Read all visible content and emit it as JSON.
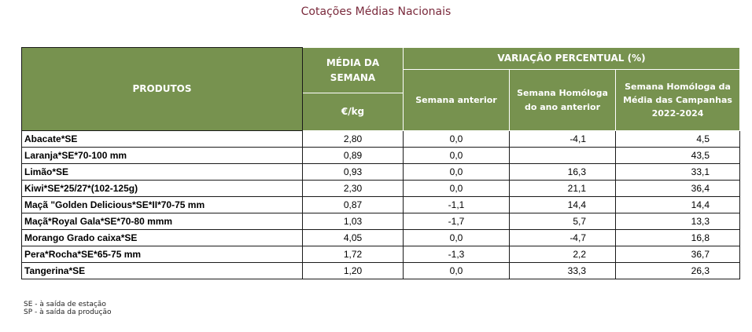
{
  "title": "Cotações Médias Nacionais",
  "table": {
    "headers": {
      "produtos": "PRODUTOS",
      "media_semana": "MÉDIA DA SEMANA",
      "unit": "€/kg",
      "variacao": "VARIAÇÃO PERCENTUAL (%)",
      "semana_anterior": "Semana anterior",
      "semana_homologa": "Semana Homóloga do ano anterior",
      "semana_homologa_media": "Semana Homóloga da Média das Campanhas 2022-2024"
    },
    "rows": [
      {
        "produto": "Abacate*SE",
        "media": "2,80",
        "semana_anterior": "0,0",
        "homologa": "-4,1",
        "homologa_media": "4,5"
      },
      {
        "produto": "Laranja*SE*70-100 mm",
        "media": "0,89",
        "semana_anterior": "0,0",
        "homologa": "",
        "homologa_media": "43,5"
      },
      {
        "produto": "Limão*SE",
        "media": "0,93",
        "semana_anterior": "0,0",
        "homologa": "16,3",
        "homologa_media": "33,1"
      },
      {
        "produto": "Kiwi*SE*25/27*(102-125g)",
        "media": "2,30",
        "semana_anterior": "0,0",
        "homologa": "21,1",
        "homologa_media": "36,4"
      },
      {
        "produto": "Maçã \"Golden Delicious*SE*II*70-75 mm",
        "media": "0,87",
        "semana_anterior": "-1,1",
        "homologa": "14,4",
        "homologa_media": "14,4"
      },
      {
        "produto": "Maçã*Royal Gala*SE*70-80 mmm",
        "media": "1,03",
        "semana_anterior": "-1,7",
        "homologa": "5,7",
        "homologa_media": "13,3"
      },
      {
        "produto": "Morango Grado caixa*SE",
        "media": "4,05",
        "semana_anterior": "0,0",
        "homologa": "-4,7",
        "homologa_media": "16,8"
      },
      {
        "produto": "Pera*Rocha*SE*65-75 mm",
        "media": "1,72",
        "semana_anterior": "-1,3",
        "homologa": "2,2",
        "homologa_media": "36,7"
      },
      {
        "produto": "Tangerina*SE",
        "media": "1,20",
        "semana_anterior": "0,0",
        "homologa": "33,3",
        "homologa_media": "26,3"
      }
    ]
  },
  "footnotes": [
    "SE - à saída de estação",
    "SP - à saída da produção"
  ]
}
